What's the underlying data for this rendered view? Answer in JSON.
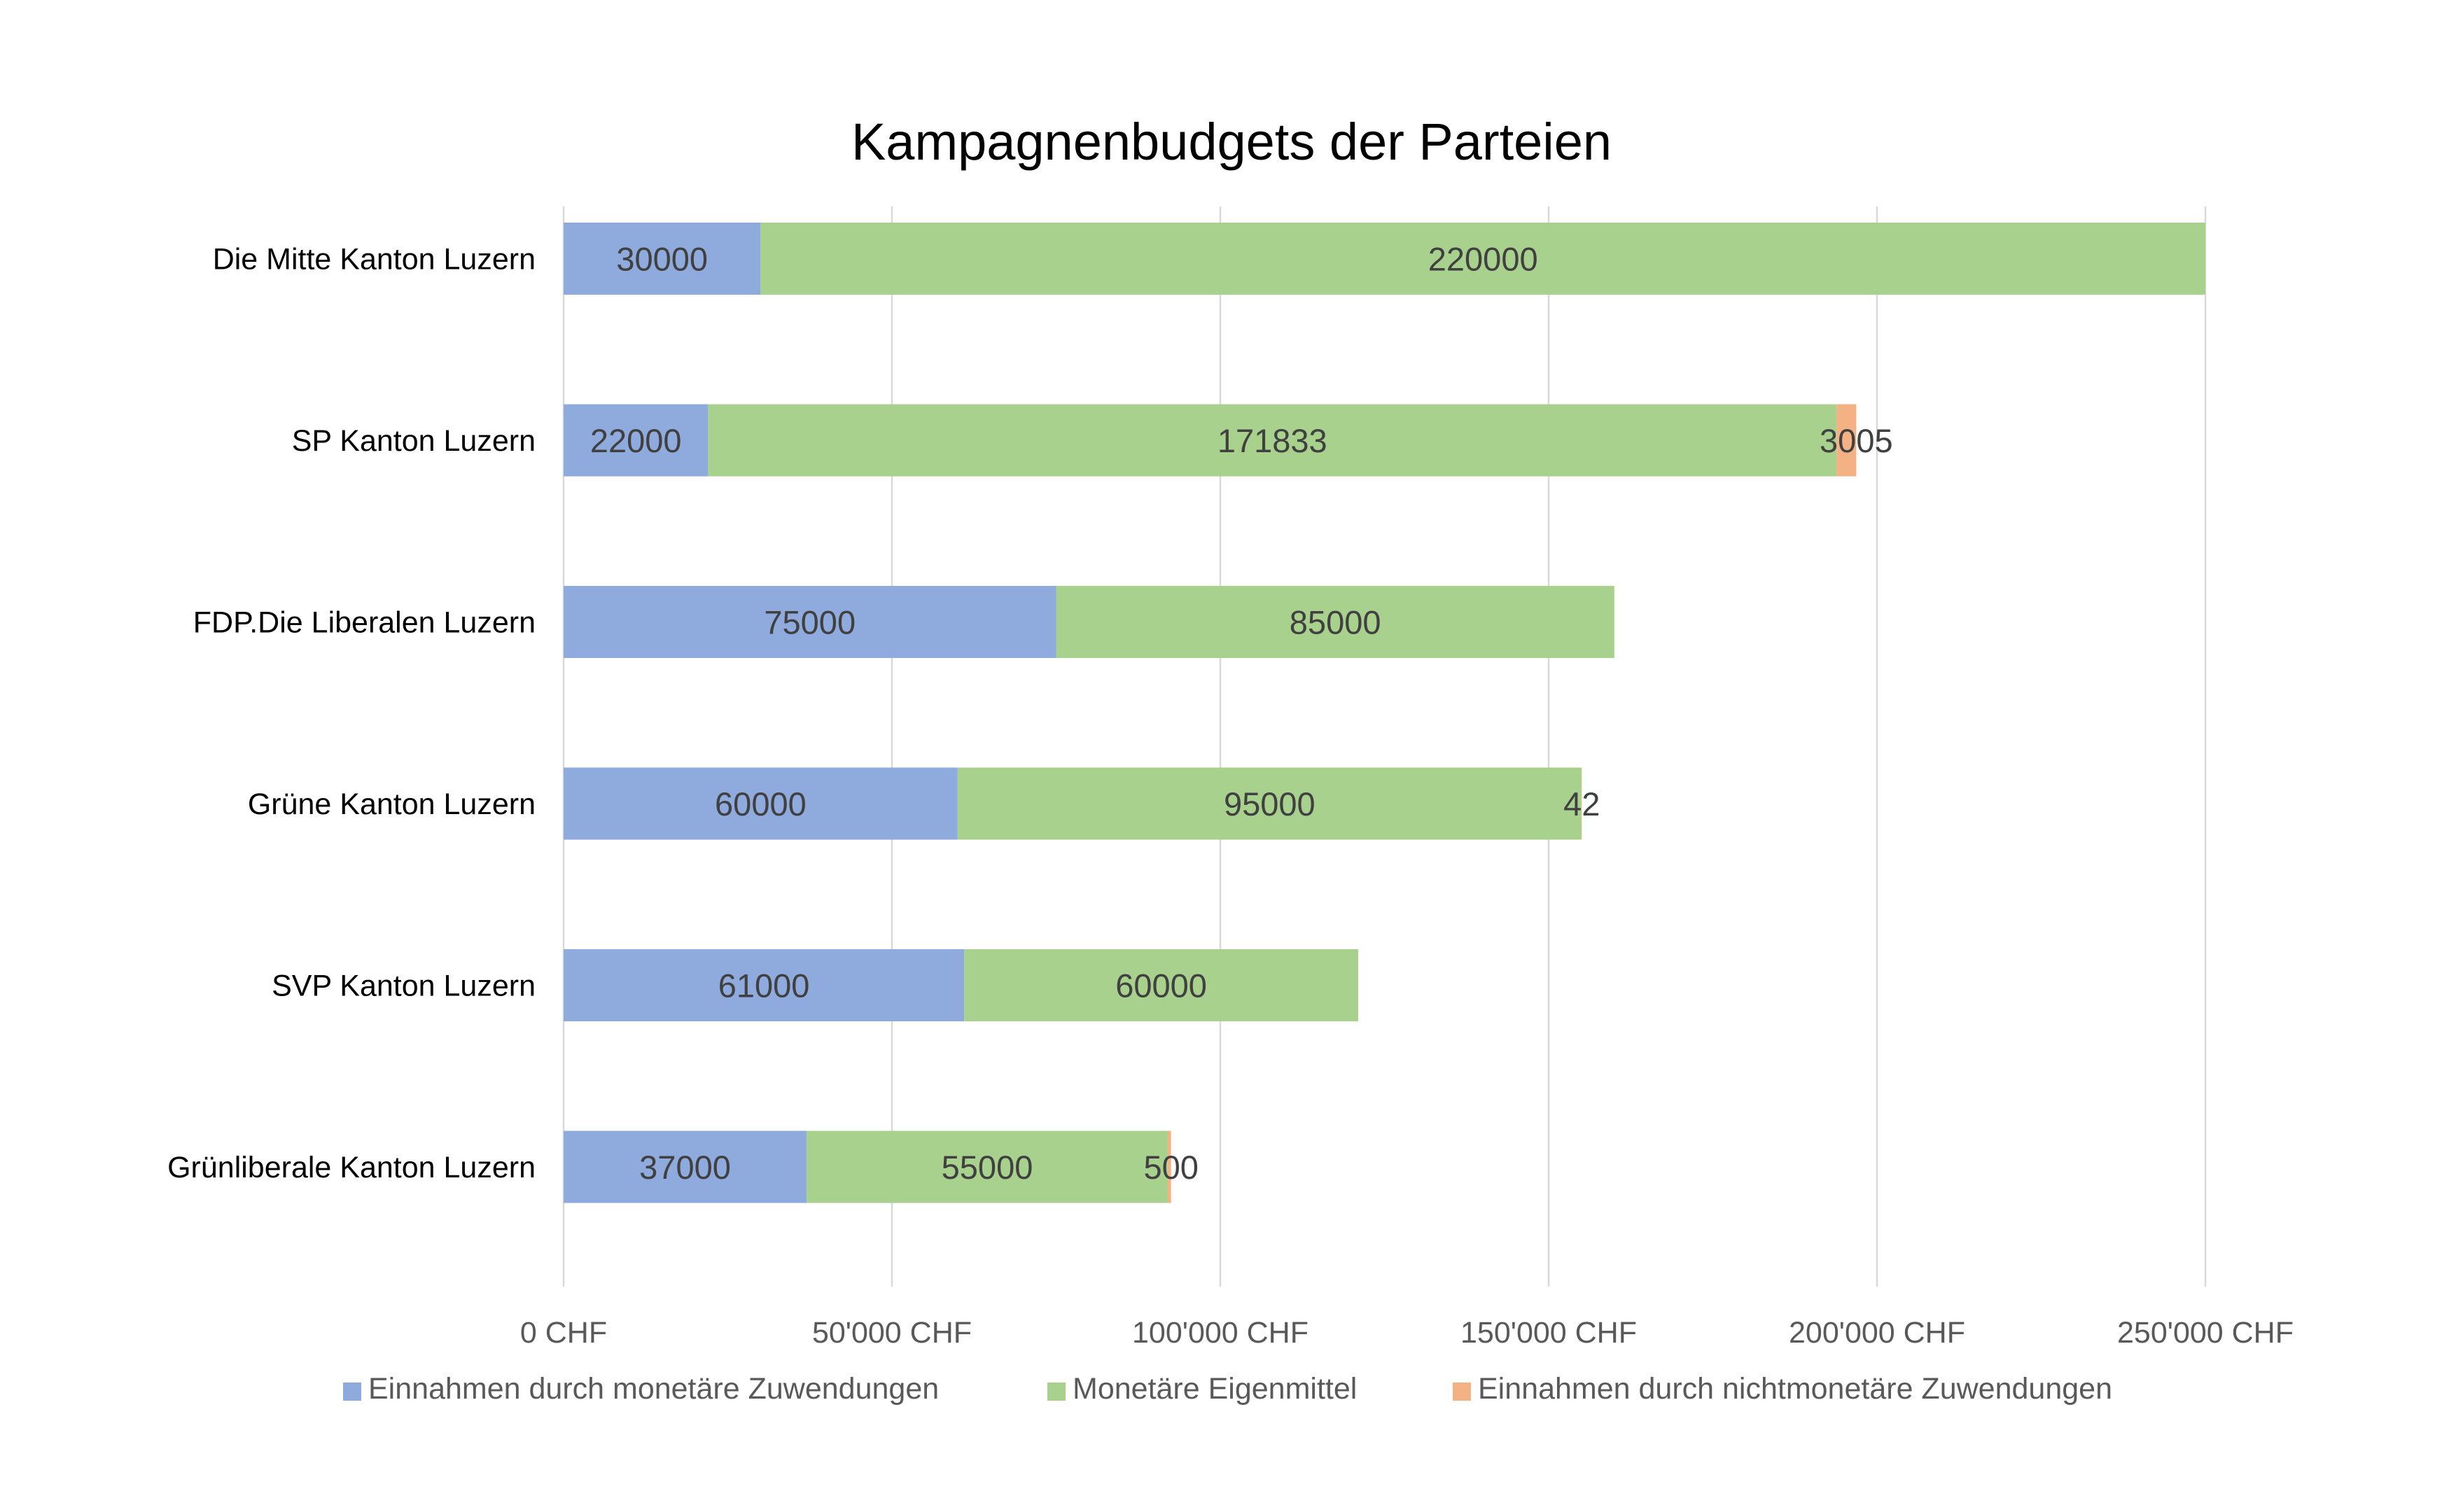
{
  "chart_data": {
    "type": "bar",
    "orientation": "horizontal",
    "stacked": true,
    "title": "Kampagnenbudgets der Parteien",
    "xlabel": "",
    "ylabel": "",
    "categories": [
      "Die Mitte Kanton Luzern",
      "SP Kanton Luzern",
      "FDP.Die Liberalen Luzern",
      "Grüne Kanton Luzern",
      "SVP Kanton Luzern",
      "Grünliberale Kanton Luzern"
    ],
    "series": [
      {
        "name": "Einnahmen durch monetäre Zuwendungen",
        "color": "#8faadc",
        "values": [
          30000,
          22000,
          75000,
          60000,
          61000,
          37000
        ],
        "labels": [
          "30000",
          "22000",
          "75000",
          "60000",
          "61000",
          "37000"
        ]
      },
      {
        "name": "Monetäre Eigenmittel",
        "color": "#a9d18e",
        "values": [
          220000,
          171833,
          85000,
          95000,
          60000,
          55000
        ],
        "labels": [
          "220000",
          "171833",
          "85000",
          "95000",
          "60000",
          "55000"
        ]
      },
      {
        "name": "Einnahmen durch nichtmonetäre Zuwendungen",
        "color": "#f4b183",
        "values": [
          0,
          3005,
          0,
          42,
          0,
          500
        ],
        "labels": [
          "",
          "3005",
          "",
          "42",
          "",
          "500"
        ]
      }
    ],
    "xlim": [
      0,
      250000
    ],
    "xticks": [
      0,
      50000,
      100000,
      150000,
      200000,
      250000
    ],
    "xtick_labels": [
      "0 CHF",
      "50'000 CHF",
      "100'000 CHF",
      "150'000 CHF",
      "200'000 CHF",
      "250'000 CHF"
    ],
    "grid": true,
    "legend_position": "bottom"
  }
}
